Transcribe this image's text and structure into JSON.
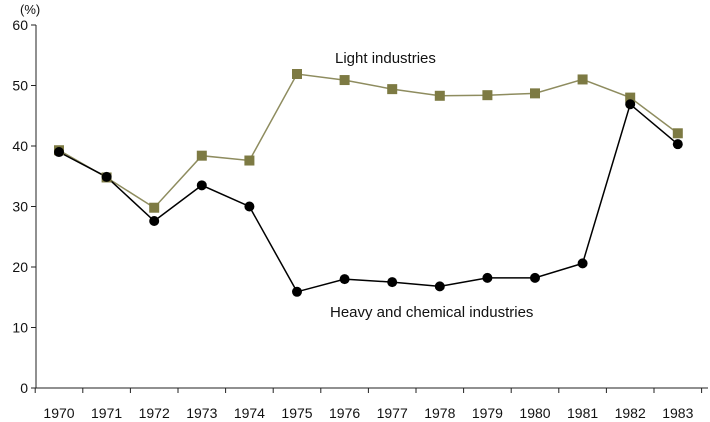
{
  "chart_data": {
    "type": "line",
    "title": "",
    "xlabel": "",
    "ylabel": "",
    "unit_label": "(%)",
    "x": [
      "1970",
      "1971",
      "1972",
      "1973",
      "1974",
      "1975",
      "1976",
      "1977",
      "1978",
      "1979",
      "1980",
      "1981",
      "1982",
      "1983"
    ],
    "ylim": [
      0,
      60
    ],
    "yticks": [
      "0",
      "10",
      "20",
      "30",
      "40",
      "50",
      "60"
    ],
    "grid": false,
    "legend": "inline labels",
    "series": [
      {
        "name": "Light industries",
        "marker": "square",
        "color": "#7d7a43",
        "line_color": "#8e8c5f",
        "values": [
          39.3,
          34.8,
          29.8,
          38.4,
          37.6,
          51.9,
          50.9,
          49.4,
          48.3,
          48.4,
          48.7,
          51.0,
          48.0,
          42.1
        ]
      },
      {
        "name": "Heavy and chemical industries",
        "marker": "circle",
        "color": "#000000",
        "line_color": "#000000",
        "values": [
          39.0,
          34.9,
          27.6,
          33.5,
          30.0,
          15.9,
          18.0,
          17.5,
          16.8,
          18.2,
          18.2,
          20.6,
          46.9,
          40.3
        ]
      }
    ]
  }
}
